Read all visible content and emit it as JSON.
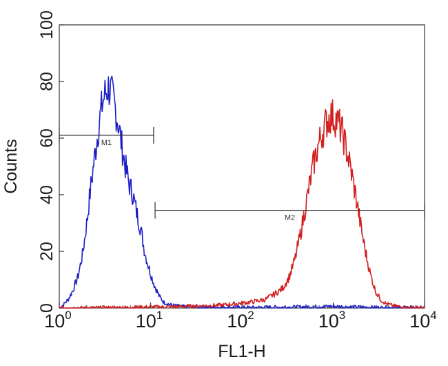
{
  "chart_data": {
    "type": "histogram",
    "xlabel": "FL1-H",
    "ylabel": "Counts",
    "xscale": "log",
    "xlim": [
      1,
      10000
    ],
    "ylim": [
      0,
      100
    ],
    "yticks": [
      "0",
      "20",
      "40",
      "60",
      "80",
      "100"
    ],
    "xticks": [
      {
        "base": "10",
        "exp": "0",
        "value": 1
      },
      {
        "base": "10",
        "exp": "1",
        "value": 10
      },
      {
        "base": "10",
        "exp": "2",
        "value": 100
      },
      {
        "base": "10",
        "exp": "3",
        "value": 1000
      },
      {
        "base": "10",
        "exp": "4",
        "value": 10000
      }
    ],
    "grid": false,
    "series": [
      {
        "color": "#1f1fc8",
        "points": [
          [
            1.0,
            0
          ],
          [
            1.1,
            1
          ],
          [
            1.25,
            3
          ],
          [
            1.4,
            6
          ],
          [
            1.6,
            11
          ],
          [
            1.8,
            19
          ],
          [
            2.0,
            30
          ],
          [
            2.2,
            42
          ],
          [
            2.45,
            54
          ],
          [
            2.7,
            64
          ],
          [
            2.95,
            72
          ],
          [
            3.2,
            76
          ],
          [
            3.45,
            78
          ],
          [
            3.7,
            76
          ],
          [
            4.0,
            72
          ],
          [
            4.4,
            66
          ],
          [
            4.8,
            58
          ],
          [
            5.3,
            50
          ],
          [
            5.8,
            44
          ],
          [
            6.4,
            40
          ],
          [
            7.0,
            34
          ],
          [
            7.8,
            28
          ],
          [
            8.6,
            20
          ],
          [
            9.6,
            14
          ],
          [
            11,
            8
          ],
          [
            12.5,
            4
          ],
          [
            14,
            2
          ],
          [
            17,
            1
          ],
          [
            22,
            0.5
          ],
          [
            40,
            0.3
          ],
          [
            100,
            0.2
          ],
          [
            300,
            0.3
          ],
          [
            700,
            0.5
          ],
          [
            1000,
            0.6
          ],
          [
            1500,
            0.4
          ],
          [
            3000,
            0.2
          ],
          [
            10000,
            0
          ]
        ]
      },
      {
        "color": "#d21f1f",
        "points": [
          [
            1.0,
            0
          ],
          [
            5,
            0.2
          ],
          [
            20,
            0.5
          ],
          [
            60,
            1
          ],
          [
            120,
            2
          ],
          [
            180,
            3
          ],
          [
            230,
            5
          ],
          [
            280,
            7
          ],
          [
            330,
            11
          ],
          [
            380,
            17
          ],
          [
            430,
            25
          ],
          [
            480,
            33
          ],
          [
            540,
            42
          ],
          [
            600,
            50
          ],
          [
            680,
            57
          ],
          [
            760,
            62
          ],
          [
            850,
            66
          ],
          [
            950,
            68
          ],
          [
            1050,
            67
          ],
          [
            1150,
            65
          ],
          [
            1280,
            61
          ],
          [
            1420,
            55
          ],
          [
            1600,
            47
          ],
          [
            1800,
            38
          ],
          [
            2000,
            29
          ],
          [
            2250,
            20
          ],
          [
            2550,
            12
          ],
          [
            2900,
            6
          ],
          [
            3300,
            3
          ],
          [
            3800,
            1.5
          ],
          [
            4500,
            0.8
          ],
          [
            6000,
            0.3
          ],
          [
            10000,
            0
          ]
        ]
      }
    ],
    "gates": [
      {
        "label": "M1",
        "x1": 1.0,
        "x2": 10.8,
        "y": 61
      },
      {
        "label": "M2",
        "x1": 11.2,
        "x2": 10000,
        "y": 34.5
      }
    ]
  }
}
